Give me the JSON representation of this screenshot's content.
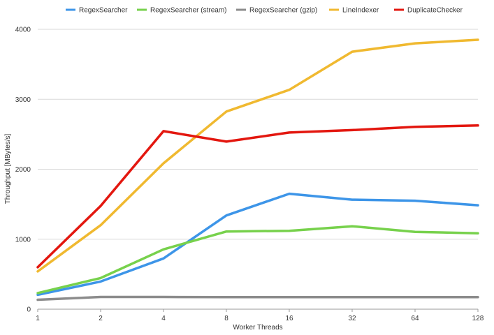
{
  "chart_data": {
    "type": "line",
    "x": [
      "1",
      "2",
      "4",
      "8",
      "16",
      "32",
      "64",
      "128"
    ],
    "xlabel": "Worker Threads",
    "ylabel": "Throughput [MBytes/s]",
    "ylim": [
      0,
      4000
    ],
    "yticks": [
      "0",
      "1000",
      "2000",
      "3000",
      "4000"
    ],
    "grid": true,
    "legend": "top",
    "series": [
      {
        "name": "RegexSearcher",
        "color": "#3d95e8",
        "values": [
          205,
          395,
          725,
          1340,
          1650,
          1565,
          1550,
          1485
        ]
      },
      {
        "name": "RegexSearcher (stream)",
        "color": "#77d14c",
        "values": [
          230,
          445,
          855,
          1110,
          1120,
          1185,
          1105,
          1085
        ]
      },
      {
        "name": "RegexSearcher (gzip)",
        "color": "#8c8c8c",
        "values": [
          135,
          175,
          175,
          172,
          172,
          172,
          172,
          172
        ]
      },
      {
        "name": "LineIndexer",
        "color": "#f0b930",
        "values": [
          540,
          1200,
          2085,
          2825,
          3135,
          3680,
          3800,
          3850
        ]
      },
      {
        "name": "DuplicateChecker",
        "color": "#e3170f",
        "values": [
          600,
          1475,
          2545,
          2395,
          2525,
          2560,
          2605,
          2625
        ]
      }
    ]
  }
}
